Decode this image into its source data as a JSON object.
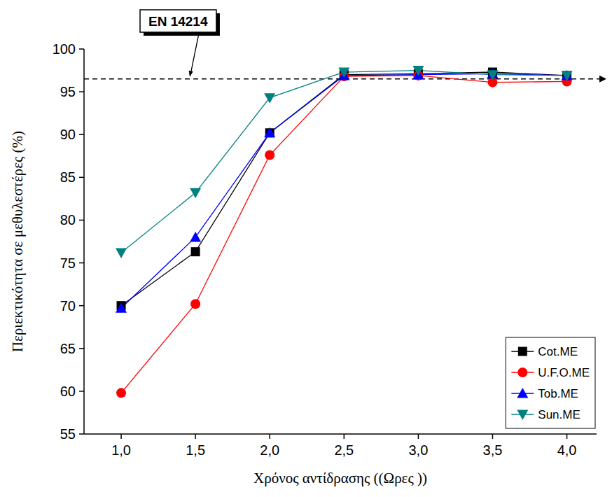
{
  "chart_data": {
    "type": "line",
    "x_label": "Χρόνος αντίδρασης ((Ωρες ))",
    "y_label": "Περιεκτικότητα σε μεθυλεστέρες (%)",
    "x": [
      1.0,
      1.5,
      2.0,
      2.5,
      3.0,
      3.5,
      4.0
    ],
    "series": [
      {
        "name": "Cot.ME",
        "color": "#000000",
        "marker": "square",
        "values": [
          70.0,
          76.3,
          90.2,
          97.0,
          97.1,
          97.3,
          96.9
        ]
      },
      {
        "name": "U.F.O.ME",
        "color": "#ff0000",
        "marker": "circle",
        "values": [
          59.8,
          70.2,
          87.6,
          96.8,
          96.9,
          96.1,
          96.2
        ]
      },
      {
        "name": "Tob.ME",
        "color": "#0000ff",
        "marker": "triangle-up",
        "values": [
          69.7,
          78.0,
          90.2,
          96.9,
          97.0,
          97.1,
          96.9
        ]
      },
      {
        "name": "Sun.ME",
        "color": "#008080",
        "marker": "triangle-down",
        "values": [
          76.2,
          83.2,
          94.3,
          97.3,
          97.5,
          97.0,
          96.9
        ]
      }
    ],
    "annotations": [
      {
        "text": "EN 14214",
        "y": 96.5,
        "line_style": "dashed"
      }
    ],
    "xlim": [
      0.75,
      4.2
    ],
    "ylim": [
      55,
      100
    ],
    "xticks": [
      {
        "value": 1.0,
        "label": "1,0"
      },
      {
        "value": 1.5,
        "label": "1,5"
      },
      {
        "value": 2.0,
        "label": "2,0"
      },
      {
        "value": 2.5,
        "label": "2,5"
      },
      {
        "value": 3.0,
        "label": "3,0"
      },
      {
        "value": 3.5,
        "label": "3,5"
      },
      {
        "value": 4.0,
        "label": "4,0"
      }
    ],
    "yticks": [
      55,
      60,
      65,
      70,
      75,
      80,
      85,
      90,
      95,
      100
    ],
    "grid": false,
    "legend": "bottom-right"
  }
}
